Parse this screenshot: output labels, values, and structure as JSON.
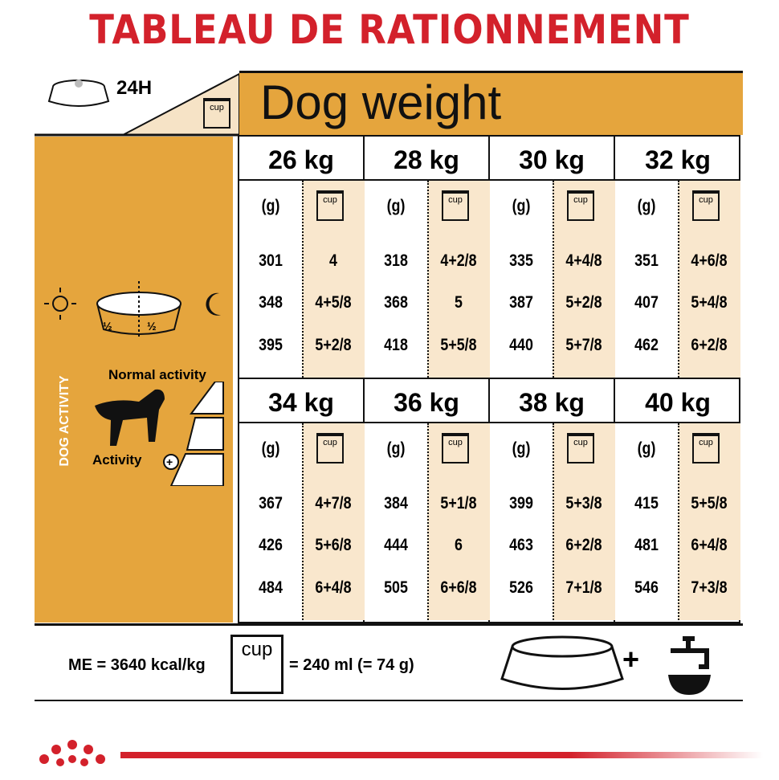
{
  "title": "TABLEAU DE RATIONNEMENT",
  "header": {
    "period": "24H",
    "cup_label": "cup",
    "dog_weight": "Dog weight"
  },
  "side": {
    "half": "½",
    "normal_activity": "Normal activity",
    "activity": "Activity",
    "dog_activity": "DOG ACTIVITY"
  },
  "columns": {
    "grams": "(g)",
    "cup": "cup"
  },
  "weights": [
    {
      "kg": "26 kg",
      "rows": [
        [
          "301",
          "4"
        ],
        [
          "348",
          "4+5/8"
        ],
        [
          "395",
          "5+2/8"
        ]
      ]
    },
    {
      "kg": "28 kg",
      "rows": [
        [
          "318",
          "4+2/8"
        ],
        [
          "368",
          "5"
        ],
        [
          "418",
          "5+5/8"
        ]
      ]
    },
    {
      "kg": "30 kg",
      "rows": [
        [
          "335",
          "4+4/8"
        ],
        [
          "387",
          "5+2/8"
        ],
        [
          "440",
          "5+7/8"
        ]
      ]
    },
    {
      "kg": "32 kg",
      "rows": [
        [
          "351",
          "4+6/8"
        ],
        [
          "407",
          "5+4/8"
        ],
        [
          "462",
          "6+2/8"
        ]
      ]
    },
    {
      "kg": "34 kg",
      "rows": [
        [
          "367",
          "4+7/8"
        ],
        [
          "426",
          "5+6/8"
        ],
        [
          "484",
          "6+4/8"
        ]
      ]
    },
    {
      "kg": "36 kg",
      "rows": [
        [
          "384",
          "5+1/8"
        ],
        [
          "444",
          "6"
        ],
        [
          "505",
          "6+6/8"
        ]
      ]
    },
    {
      "kg": "38 kg",
      "rows": [
        [
          "399",
          "5+3/8"
        ],
        [
          "463",
          "6+2/8"
        ],
        [
          "526",
          "7+1/8"
        ]
      ]
    },
    {
      "kg": "40 kg",
      "rows": [
        [
          "415",
          "5+5/8"
        ],
        [
          "481",
          "6+4/8"
        ],
        [
          "546",
          "7+3/8"
        ]
      ]
    }
  ],
  "footer": {
    "me": "ME = 3640 kcal/kg",
    "cup_label": "cup",
    "cup_equiv": "= 240 ml (= 74 g)",
    "plus": "+"
  },
  "colors": {
    "title_red": "#d3212b",
    "orange": "#e5a53d",
    "cup_bg": "#f9e7cd"
  }
}
